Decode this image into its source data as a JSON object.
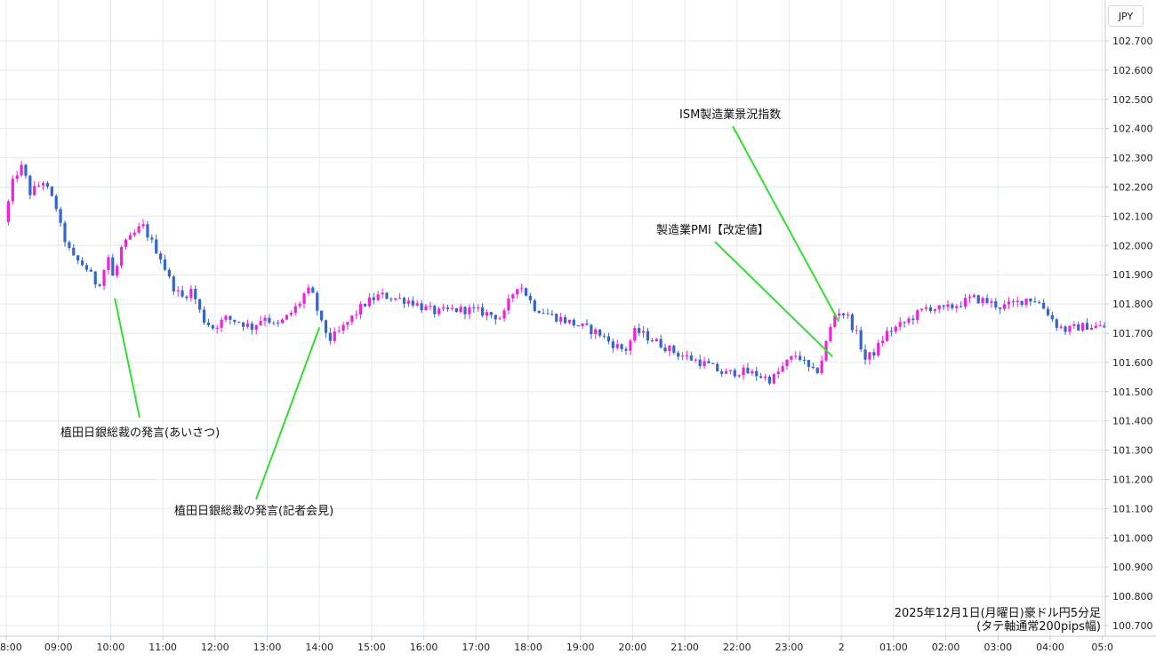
{
  "currency": "JPY",
  "caption": {
    "line1": "2025年12月1日(月曜日)豪ドル円5分足",
    "line2": "(タテ軸通常200pips幅)"
  },
  "colors": {
    "up": "#ee22dd",
    "down": "#3366cc",
    "grid": "#e3eaee",
    "annotation_line": "#33dd33"
  },
  "chart_data": {
    "type": "candlestick",
    "interval": "5m",
    "grid": true,
    "x_axis": {
      "range_hours": [
        8.0,
        29.08
      ],
      "ticks": [
        {
          "h": 8,
          "label": "8:00"
        },
        {
          "h": 9,
          "label": "09:00"
        },
        {
          "h": 10,
          "label": "10:00"
        },
        {
          "h": 11,
          "label": "11:00"
        },
        {
          "h": 12,
          "label": "12:00"
        },
        {
          "h": 13,
          "label": "13:00"
        },
        {
          "h": 14,
          "label": "14:00"
        },
        {
          "h": 15,
          "label": "15:00"
        },
        {
          "h": 16,
          "label": "16:00"
        },
        {
          "h": 17,
          "label": "17:00"
        },
        {
          "h": 18,
          "label": "18:00"
        },
        {
          "h": 19,
          "label": "19:00"
        },
        {
          "h": 20,
          "label": "20:00"
        },
        {
          "h": 21,
          "label": "21:00"
        },
        {
          "h": 22,
          "label": "22:00"
        },
        {
          "h": 23,
          "label": "23:00"
        },
        {
          "h": 24,
          "label": "2"
        },
        {
          "h": 25,
          "label": "01:00"
        },
        {
          "h": 26,
          "label": "02:00"
        },
        {
          "h": 27,
          "label": "03:00"
        },
        {
          "h": 28,
          "label": "04:00"
        },
        {
          "h": 29,
          "label": "05:0"
        }
      ]
    },
    "y_axis": {
      "range": [
        100.672,
        102.81
      ],
      "tick_labels": [
        "100.700",
        "100.800",
        "100.900",
        "101.000",
        "101.100",
        "101.200",
        "101.300",
        "101.400",
        "101.500",
        "101.600",
        "101.700",
        "101.800",
        "101.900",
        "102.000",
        "102.100",
        "102.200",
        "102.300",
        "102.400",
        "102.500",
        "102.600",
        "102.700"
      ]
    },
    "price_path": [
      [
        8.0,
        102.08
      ],
      [
        8.2,
        102.24
      ],
      [
        8.35,
        102.27
      ],
      [
        8.5,
        102.18
      ],
      [
        8.75,
        102.22
      ],
      [
        9.0,
        102.13
      ],
      [
        9.1,
        102.05
      ],
      [
        9.3,
        101.96
      ],
      [
        9.55,
        101.93
      ],
      [
        9.8,
        101.86
      ],
      [
        10.0,
        101.96
      ],
      [
        10.1,
        101.88
      ],
      [
        10.25,
        101.99
      ],
      [
        10.5,
        102.04
      ],
      [
        10.65,
        102.07
      ],
      [
        10.8,
        102.02
      ],
      [
        11.0,
        101.96
      ],
      [
        11.2,
        101.87
      ],
      [
        11.4,
        101.82
      ],
      [
        11.6,
        101.85
      ],
      [
        11.8,
        101.75
      ],
      [
        12.0,
        101.72
      ],
      [
        12.25,
        101.75
      ],
      [
        12.5,
        101.74
      ],
      [
        12.75,
        101.72
      ],
      [
        13.0,
        101.76
      ],
      [
        13.2,
        101.72
      ],
      [
        13.45,
        101.76
      ],
      [
        13.65,
        101.8
      ],
      [
        13.8,
        101.85
      ],
      [
        13.95,
        101.82
      ],
      [
        14.05,
        101.74
      ],
      [
        14.25,
        101.68
      ],
      [
        14.4,
        101.7
      ],
      [
        14.6,
        101.74
      ],
      [
        14.9,
        101.8
      ],
      [
        15.2,
        101.83
      ],
      [
        15.5,
        101.82
      ],
      [
        15.8,
        101.81
      ],
      [
        16.0,
        101.79
      ],
      [
        16.3,
        101.77
      ],
      [
        16.6,
        101.78
      ],
      [
        16.9,
        101.78
      ],
      [
        17.2,
        101.77
      ],
      [
        17.4,
        101.76
      ],
      [
        17.55,
        101.75
      ],
      [
        17.7,
        101.82
      ],
      [
        17.85,
        101.87
      ],
      [
        17.95,
        101.85
      ],
      [
        18.15,
        101.79
      ],
      [
        18.5,
        101.76
      ],
      [
        18.8,
        101.74
      ],
      [
        19.1,
        101.72
      ],
      [
        19.4,
        101.7
      ],
      [
        19.6,
        101.67
      ],
      [
        19.9,
        101.64
      ],
      [
        20.1,
        101.71
      ],
      [
        20.3,
        101.69
      ],
      [
        20.6,
        101.66
      ],
      [
        20.9,
        101.63
      ],
      [
        21.2,
        101.61
      ],
      [
        21.5,
        101.59
      ],
      [
        21.8,
        101.56
      ],
      [
        22.1,
        101.57
      ],
      [
        22.4,
        101.56
      ],
      [
        22.7,
        101.54
      ],
      [
        23.0,
        101.6
      ],
      [
        23.2,
        101.63
      ],
      [
        23.4,
        101.58
      ],
      [
        23.55,
        101.56
      ],
      [
        23.65,
        101.6
      ],
      [
        23.8,
        101.7
      ],
      [
        23.95,
        101.78
      ],
      [
        24.15,
        101.76
      ],
      [
        24.35,
        101.69
      ],
      [
        24.5,
        101.61
      ],
      [
        24.7,
        101.64
      ],
      [
        24.9,
        101.7
      ],
      [
        25.2,
        101.73
      ],
      [
        25.45,
        101.76
      ],
      [
        25.7,
        101.79
      ],
      [
        26.0,
        101.78
      ],
      [
        26.3,
        101.8
      ],
      [
        26.55,
        101.82
      ],
      [
        26.8,
        101.81
      ],
      [
        27.1,
        101.79
      ],
      [
        27.35,
        101.8
      ],
      [
        27.6,
        101.82
      ],
      [
        27.8,
        101.81
      ],
      [
        28.0,
        101.77
      ],
      [
        28.15,
        101.73
      ],
      [
        28.35,
        101.71
      ],
      [
        28.55,
        101.72
      ],
      [
        28.75,
        101.725
      ],
      [
        29.08,
        101.72
      ]
    ]
  },
  "annotations": [
    {
      "text": "植田日銀総裁の発言(あいさつ)",
      "anchor_h": 10.08,
      "anchor_y": 101.82
    },
    {
      "text": "植田日銀総裁の発言(記者会見)",
      "anchor_h": 14.0,
      "anchor_y": 101.72
    },
    {
      "text": "製造業PMI【改定値】",
      "anchor_h": 23.83,
      "anchor_y": 101.62
    },
    {
      "text": "ISM製造業景況指数",
      "anchor_h": 23.95,
      "anchor_y": 101.74
    }
  ]
}
